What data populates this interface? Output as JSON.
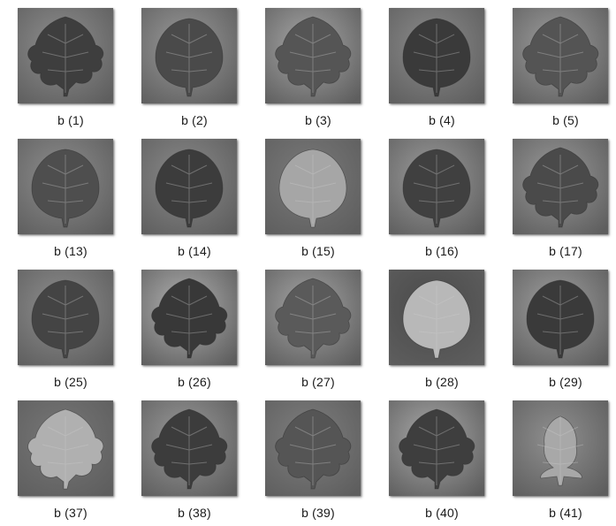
{
  "window": {
    "title": ""
  },
  "gallery": {
    "items": [
      {
        "label": "b (1)",
        "tone": "#3e3e3e",
        "bg": "#8f8f8f",
        "shape": "lobed"
      },
      {
        "label": "b (2)",
        "tone": "#4a4a4a",
        "bg": "#9a9a9a",
        "shape": "ovate"
      },
      {
        "label": "b (3)",
        "tone": "#555555",
        "bg": "#a8a8a8",
        "shape": "lobed"
      },
      {
        "label": "b (4)",
        "tone": "#3a3a3a",
        "bg": "#8c8c8c",
        "shape": "ovate"
      },
      {
        "label": "b (5)",
        "tone": "#545454",
        "bg": "#9e9e9e",
        "shape": "lobed"
      },
      {
        "label": "b (13)",
        "tone": "#4e4e4e",
        "bg": "#8e8e8e",
        "shape": "ovate"
      },
      {
        "label": "b (14)",
        "tone": "#3c3c3c",
        "bg": "#8a8a8a",
        "shape": "ovate"
      },
      {
        "label": "b (15)",
        "tone": "#a6a6a6",
        "bg": "#7a7a7a",
        "shape": "ovate"
      },
      {
        "label": "b (16)",
        "tone": "#404040",
        "bg": "#9c9c9c",
        "shape": "ovate"
      },
      {
        "label": "b (17)",
        "tone": "#4a4a4a",
        "bg": "#9a9a9a",
        "shape": "lobed"
      },
      {
        "label": "b (25)",
        "tone": "#444444",
        "bg": "#8f8f8f",
        "shape": "ovate"
      },
      {
        "label": "b (26)",
        "tone": "#383838",
        "bg": "#b2b2b2",
        "shape": "lobed"
      },
      {
        "label": "b (27)",
        "tone": "#5a5a5a",
        "bg": "#a6a6a6",
        "shape": "lobed"
      },
      {
        "label": "b (28)",
        "tone": "#b8b8b8",
        "bg": "#4a4a4a",
        "shape": "ovate"
      },
      {
        "label": "b (29)",
        "tone": "#3a3a3a",
        "bg": "#a0a0a0",
        "shape": "ovate"
      },
      {
        "label": "b (37)",
        "tone": "#b0b0b0",
        "bg": "#777777",
        "shape": "lobed"
      },
      {
        "label": "b (38)",
        "tone": "#3c3c3c",
        "bg": "#9a9a9a",
        "shape": "lobed"
      },
      {
        "label": "b (39)",
        "tone": "#555555",
        "bg": "#7f7f7f",
        "shape": "lobed"
      },
      {
        "label": "b (40)",
        "tone": "#3e3e3e",
        "bg": "#aaaaaa",
        "shape": "lobed"
      },
      {
        "label": "b (41)",
        "tone": "#a8a8a8",
        "bg": "#909090",
        "shape": "small"
      }
    ]
  }
}
